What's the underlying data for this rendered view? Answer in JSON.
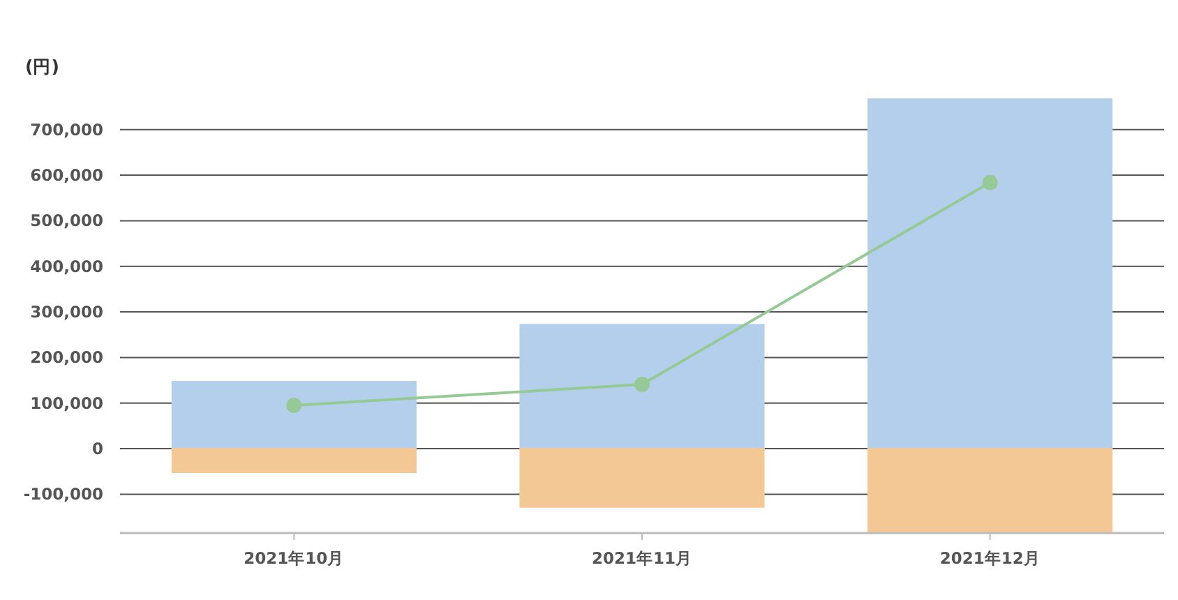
{
  "chart_data": {
    "type": "bar",
    "ylabel": "(円)",
    "categories": [
      "2021年10月",
      "2021年11月",
      "2021年12月"
    ],
    "stacked": true,
    "series": [
      {
        "color": "#b3cfeb",
        "values": [
          147000,
          272000,
          767000
        ]
      },
      {
        "color": "#f3c894",
        "values": [
          -52000,
          -128000,
          -185000
        ]
      },
      {
        "type": "line",
        "color": "#97c997",
        "values": [
          95000,
          141000,
          584000
        ]
      }
    ],
    "marker": "circle",
    "ylim": [
      -185000,
      770000
    ],
    "yticks": [
      {
        "value": -100000,
        "label": "-100,000"
      },
      0,
      {
        "value": 100000,
        "label": "100,000"
      },
      {
        "value": 200000,
        "label": "200,000"
      },
      {
        "value": 300000,
        "label": "300,000"
      },
      {
        "value": 400000,
        "label": "400,000"
      },
      {
        "value": 500000,
        "label": "500,000"
      },
      {
        "value": 600000,
        "label": "600,000"
      },
      {
        "value": 700000,
        "label": "700,000"
      }
    ],
    "grid": "y"
  }
}
